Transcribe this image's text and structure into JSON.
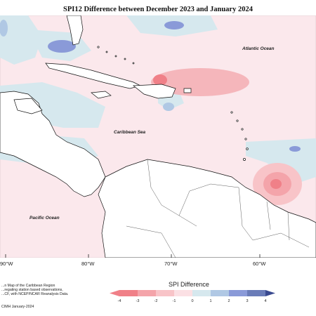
{
  "map": {
    "title": "SPI12 Difference between December 2023 and January 2024",
    "labels": {
      "atlantic": "Atlantic Ocean",
      "caribbean": "Caribbean Sea",
      "pacific": "Pacific Ocean"
    },
    "longitudes": [
      "90°W",
      "80°W",
      "70°W",
      "60°W"
    ],
    "credit_lines": [
      "...n Map of the Caribbean Region",
      "...regating station based observations,",
      "...CF, with NCEP/NCAR Reanalysis Data."
    ],
    "credit_date": "CIMH January-2024"
  },
  "legend": {
    "title": "SPI Difference",
    "ticks": [
      "-4",
      "-3",
      "-2",
      "-1",
      "0",
      "1",
      "2",
      "3",
      "4"
    ],
    "colors": [
      "#f08088",
      "#f4a4aa",
      "#f8c4c8",
      "#fbe0e4",
      "#d6e8ee",
      "#b0c8e4",
      "#8a9ad8",
      "#6a7cb8",
      "#3a4a90"
    ]
  }
}
